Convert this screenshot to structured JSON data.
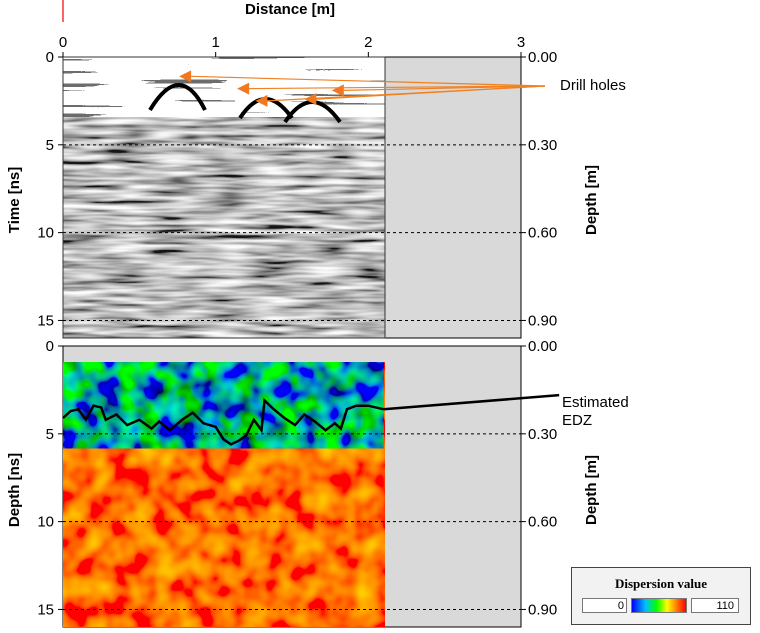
{
  "chart_data": [
    {
      "type": "heatmap",
      "panel": "radargram",
      "xlabel": "Distance [m]",
      "ylabel": "Time [ns]",
      "y2label": "Depth [m]",
      "xlim": [
        0,
        3
      ],
      "ylim": [
        0,
        16
      ],
      "x_ticks": [
        "0",
        "1",
        "2",
        "3"
      ],
      "y_ticks": [
        "0",
        "5",
        "10",
        "15"
      ],
      "y2_ticks": [
        "0.00",
        "0.30",
        "0.60",
        "0.90"
      ],
      "data_extent_x": [
        0,
        2.1
      ],
      "annotation": "Drill holes",
      "drill_holes": [
        {
          "x": 0.8,
          "y": 1.1
        },
        {
          "x": 1.18,
          "y": 1.8
        },
        {
          "x": 1.3,
          "y": 2.5
        },
        {
          "x": 1.62,
          "y": 2.4
        },
        {
          "x": 1.8,
          "y": 1.9
        }
      ],
      "grid": "dashed horizontal at 5, 10, 15"
    },
    {
      "type": "heatmap",
      "panel": "dispersion",
      "ylabel": "Depth [ns]",
      "y2label": "Depth [m]",
      "xlim": [
        0,
        3
      ],
      "ylim": [
        0,
        16
      ],
      "y_ticks": [
        "0",
        "5",
        "10",
        "15"
      ],
      "y2_ticks": [
        "0.00",
        "0.30",
        "0.60",
        "0.90"
      ],
      "data_extent_x": [
        0,
        2.1
      ],
      "data_extent_y": [
        0.8,
        16
      ],
      "annotation": "Estimated\nEDZ",
      "edz_line": [
        [
          0.0,
          4.1
        ],
        [
          0.05,
          3.7
        ],
        [
          0.1,
          3.6
        ],
        [
          0.15,
          4.2
        ],
        [
          0.2,
          3.4
        ],
        [
          0.25,
          3.5
        ],
        [
          0.28,
          4.2
        ],
        [
          0.35,
          3.9
        ],
        [
          0.42,
          4.5
        ],
        [
          0.5,
          4.2
        ],
        [
          0.58,
          4.7
        ],
        [
          0.63,
          4.3
        ],
        [
          0.7,
          4.8
        ],
        [
          0.78,
          4.2
        ],
        [
          0.85,
          3.8
        ],
        [
          0.92,
          4.4
        ],
        [
          1.0,
          4.6
        ],
        [
          1.05,
          5.3
        ],
        [
          1.1,
          5.6
        ],
        [
          1.15,
          5.4
        ],
        [
          1.2,
          5.1
        ],
        [
          1.25,
          4.2
        ],
        [
          1.3,
          4.8
        ],
        [
          1.32,
          3.1
        ],
        [
          1.38,
          3.6
        ],
        [
          1.45,
          4.1
        ],
        [
          1.52,
          4.5
        ],
        [
          1.58,
          3.9
        ],
        [
          1.65,
          4.3
        ],
        [
          1.72,
          4.8
        ],
        [
          1.78,
          4.4
        ],
        [
          1.82,
          4.7
        ],
        [
          1.86,
          3.6
        ],
        [
          1.92,
          3.4
        ],
        [
          2.0,
          3.4
        ],
        [
          2.1,
          3.6
        ]
      ],
      "edz_leader_end": [
        3.25,
        2.8
      ],
      "grid": "dashed horizontal at 5, 10, 15",
      "colorbar": {
        "title": "Dispersion value",
        "min": "0",
        "max": "110"
      }
    }
  ]
}
